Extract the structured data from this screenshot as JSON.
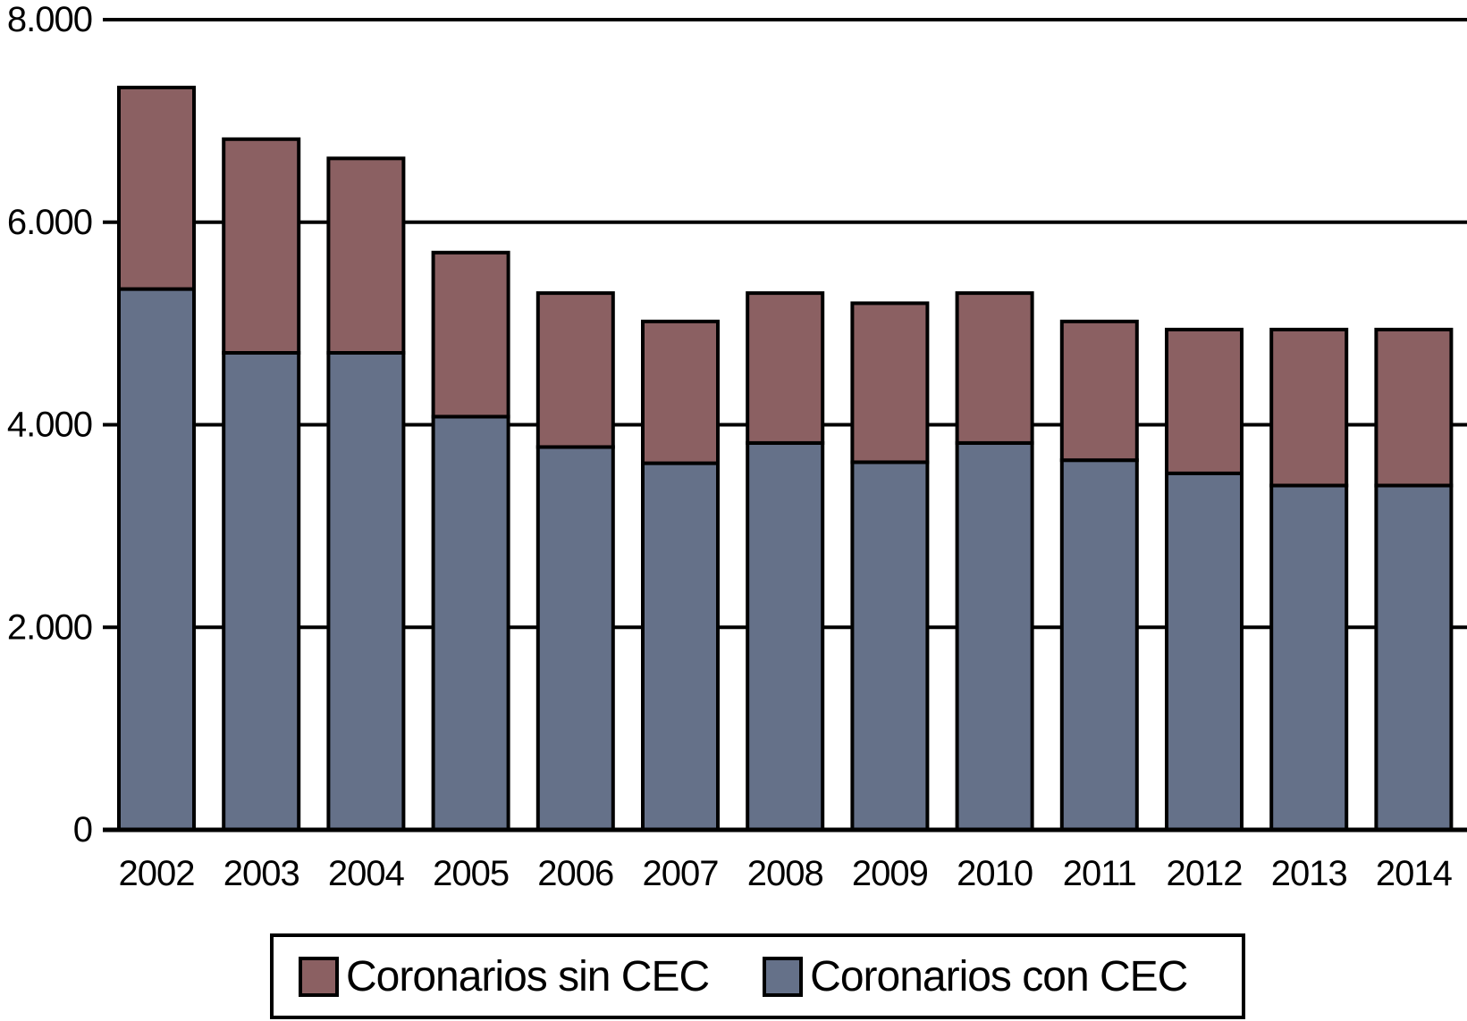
{
  "chart_data": {
    "type": "bar",
    "stacked": true,
    "title": "",
    "xlabel": "",
    "ylabel": "",
    "categories": [
      "2002",
      "2003",
      "2004",
      "2005",
      "2006",
      "2007",
      "2008",
      "2009",
      "2010",
      "2011",
      "2012",
      "2013",
      "2014"
    ],
    "series": [
      {
        "name": "Coronarios con CEC",
        "color": "#657189",
        "values": [
          5340,
          4710,
          4710,
          4080,
          3780,
          3620,
          3820,
          3630,
          3820,
          3650,
          3520,
          3400,
          3400
        ]
      },
      {
        "name": "Coronarios sin CEC",
        "color": "#8b6062",
        "values": [
          1990,
          2110,
          1920,
          1620,
          1520,
          1400,
          1480,
          1570,
          1480,
          1370,
          1420,
          1540,
          1540
        ]
      }
    ],
    "ylim": [
      0,
      8000
    ],
    "yticks": [
      0,
      2000,
      4000,
      6000,
      8000
    ],
    "ytick_labels": [
      "0",
      "2.000",
      "4.000",
      "6.000",
      "8.000"
    ],
    "grid": true,
    "legend_position": "bottom"
  },
  "legend": {
    "items": [
      {
        "label": "Coronarios sin CEC",
        "color": "#8b6062"
      },
      {
        "label": "Coronarios con CEC",
        "color": "#657189"
      }
    ]
  },
  "colors": {
    "axis": "#000000",
    "background": "#ffffff"
  }
}
